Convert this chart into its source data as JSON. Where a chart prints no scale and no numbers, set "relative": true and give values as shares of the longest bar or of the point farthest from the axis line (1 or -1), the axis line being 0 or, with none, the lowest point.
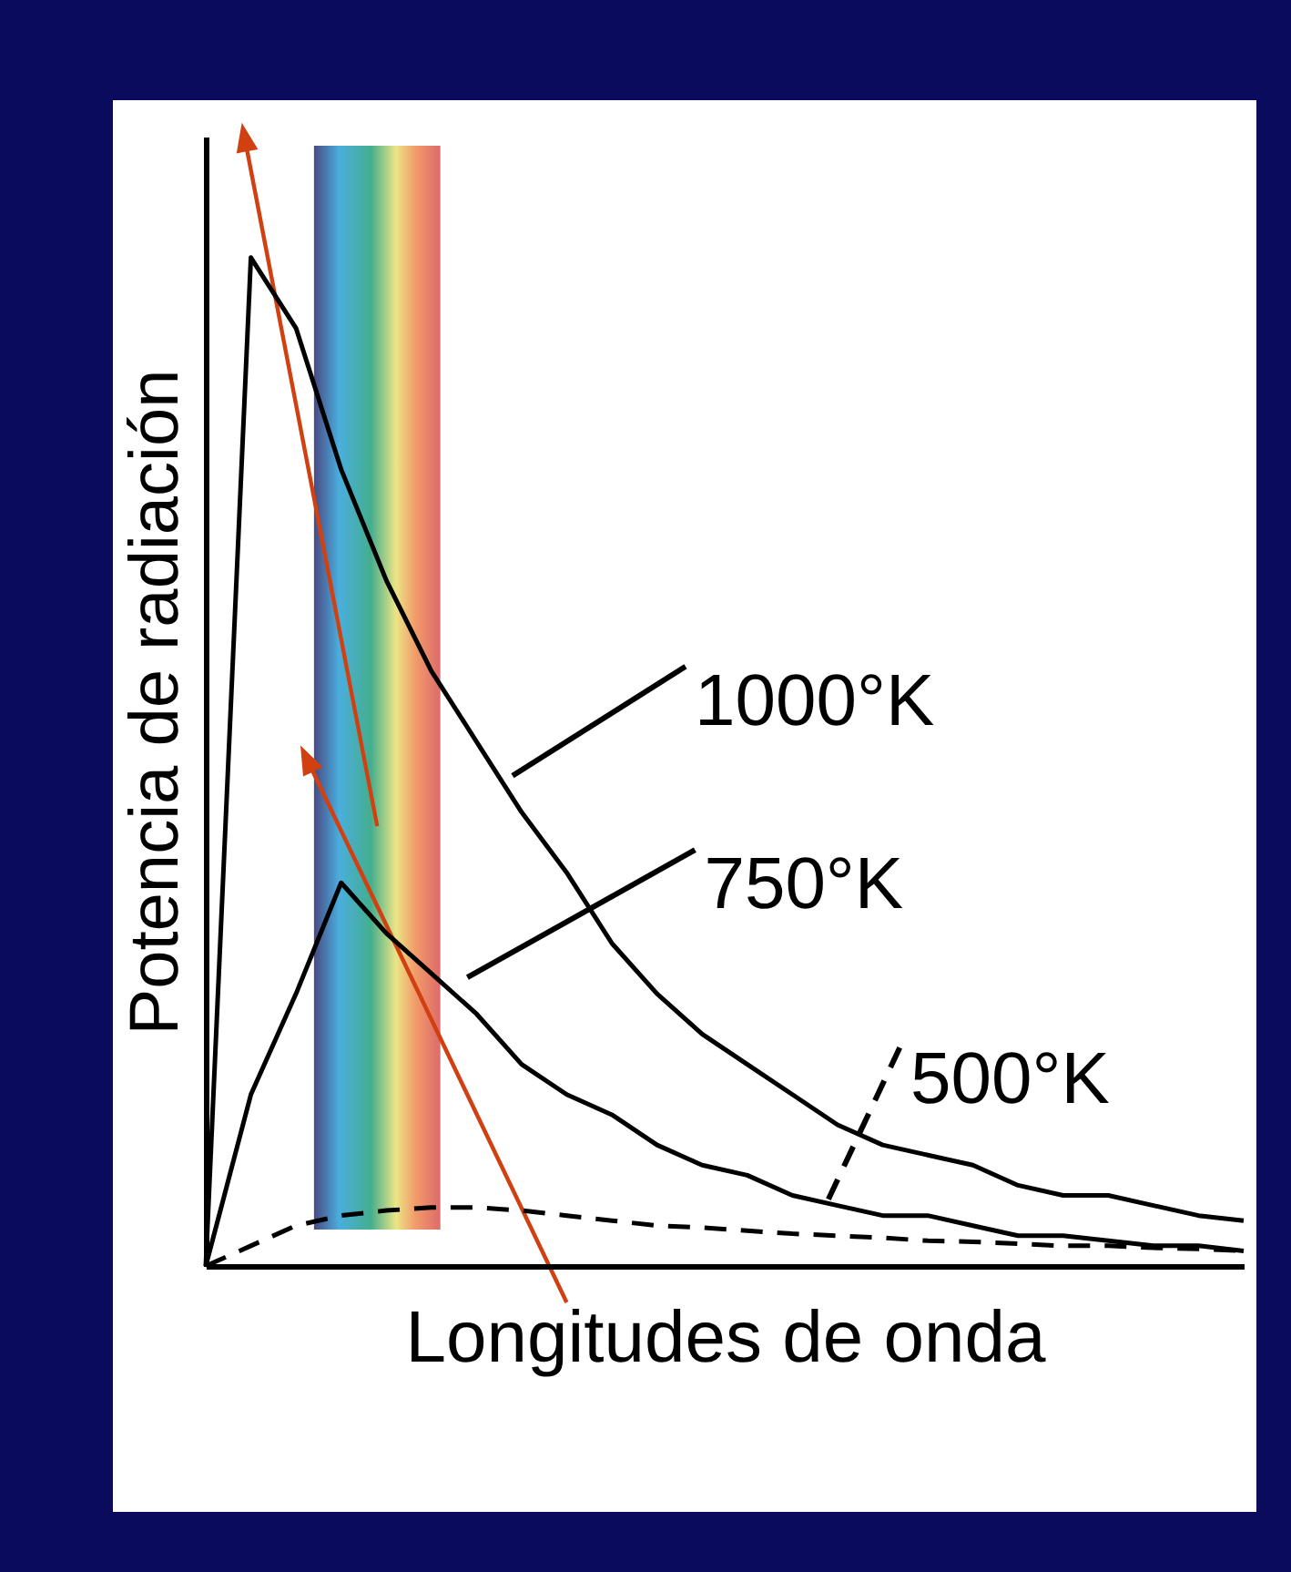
{
  "chart_data": {
    "type": "line",
    "relative": true,
    "xlabel": "Longitudes de onda",
    "ylabel": "Potencia de radiación",
    "legend": "right",
    "grid": false,
    "marker": "none",
    "categories": [
      null,
      null,
      null,
      null,
      null,
      null,
      null,
      null,
      null,
      null,
      null,
      null,
      null,
      null,
      null,
      null,
      null,
      null,
      null,
      null,
      null,
      null,
      null,
      null
    ],
    "series": [
      {
        "name": "1000°K",
        "color": "#000000",
        "line_style": "solid",
        "values": [
          0,
          1,
          0.93,
          0.79,
          0.68,
          0.59,
          0.52,
          0.45,
          0.39,
          0.32,
          0.27,
          0.23,
          0.2,
          0.17,
          0.14,
          0.12,
          0.11,
          0.1,
          0.08,
          0.07,
          0.07,
          0.06,
          0.05,
          0.045
        ]
      },
      {
        "name": "750°K",
        "color": "#000000",
        "line_style": "solid",
        "values": [
          0,
          0.17,
          0.27,
          0.38,
          0.33,
          0.29,
          0.25,
          0.2,
          0.17,
          0.15,
          0.12,
          0.1,
          0.09,
          0.07,
          0.06,
          0.05,
          0.05,
          0.04,
          0.03,
          0.03,
          0.025,
          0.02,
          0.02,
          0.015
        ]
      },
      {
        "name": "500°K",
        "color": "#000000",
        "line_style": "dashed",
        "values": [
          0,
          0.02,
          0.04,
          0.05,
          0.055,
          0.058,
          0.058,
          0.055,
          0.05,
          0.045,
          0.04,
          0.038,
          0.035,
          0.032,
          0.03,
          0.028,
          0.025,
          0.024,
          0.022,
          0.02,
          0.02,
          0.018,
          0.017,
          0.015
        ]
      }
    ]
  }
}
